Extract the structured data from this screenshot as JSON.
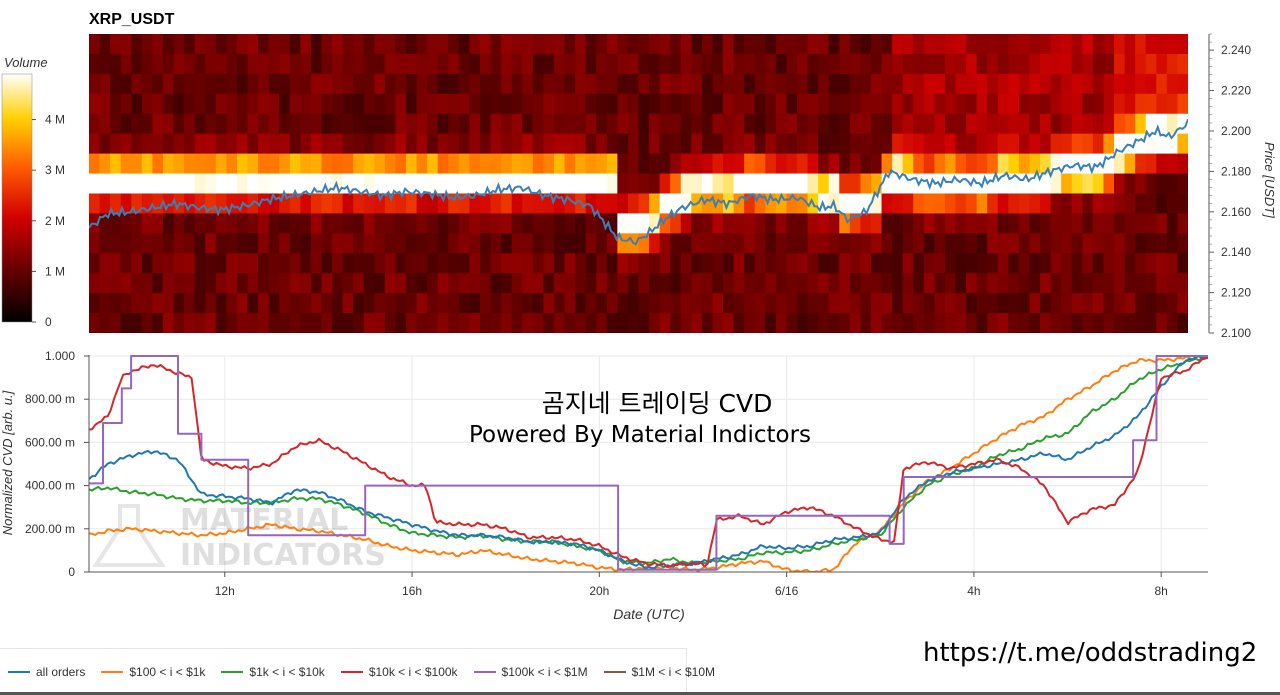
{
  "title": "XRP_USDT",
  "heatmap": {
    "colorbar_label": "Volume",
    "colorbar_ticks": [
      "0",
      "1 M",
      "2 M",
      "3 M",
      "4 M"
    ],
    "colorbar_values": [
      0,
      1000000,
      2000000,
      3000000,
      4000000
    ],
    "colorbar_max": 4900000,
    "price_axis_label": "Price [USDT]",
    "price_ticks": [
      "2.100",
      "2.120",
      "2.140",
      "2.160",
      "2.180",
      "2.200",
      "2.220",
      "2.240"
    ],
    "price_tick_values": [
      2.1,
      2.12,
      2.14,
      2.16,
      2.18,
      2.2,
      2.22,
      2.24
    ],
    "price_range": [
      2.1,
      2.248
    ]
  },
  "cvd": {
    "y_axis_label": "Normalized CVD [arb. u.]",
    "y_ticks": [
      "0",
      "200.00 m",
      "400.00 m",
      "600.00 m",
      "800.00 m",
      "1.000"
    ],
    "y_tick_values": [
      0,
      0.2,
      0.4,
      0.6,
      0.8,
      1.0
    ],
    "x_axis_label": "Date (UTC)",
    "x_ticks": [
      "12h",
      "16h",
      "20h",
      "6/16",
      "4h",
      "8h"
    ],
    "x_tick_values": [
      12,
      16,
      20,
      24,
      28,
      32
    ],
    "x_range": [
      9.1,
      33.0
    ],
    "overlay_line1": "곰지네 트레이딩 CVD",
    "overlay_line2": "Powered By Material Indictors",
    "watermark_line1": "MATERIAL",
    "watermark_line2": "INDICATORS"
  },
  "legend": [
    {
      "label": "all orders",
      "color": "#1f77b4"
    },
    {
      "label": "$100 < i < $1k",
      "color": "#ff7f0e"
    },
    {
      "label": "$1k < i < $10k",
      "color": "#2ca02c"
    },
    {
      "label": "$10k < i < $100k",
      "color": "#d62728"
    },
    {
      "label": "$100k < i < $1M",
      "color": "#9467bd"
    },
    {
      "label": "$1M < i < $10M",
      "color": "#8c564b"
    }
  ],
  "telegram": "https://t.me/oddstrading2",
  "chart_data": [
    {
      "type": "heatmap",
      "title": "XRP_USDT",
      "ylabel": "Price [USDT]",
      "ylim": [
        2.1,
        2.248
      ],
      "colorbar": "Volume",
      "price_series": {
        "x": [
          9.1,
          9.5,
          10.0,
          10.5,
          11.0,
          11.5,
          12.0,
          12.5,
          13.0,
          13.5,
          14.0,
          14.5,
          15.0,
          15.5,
          16.0,
          16.5,
          17.0,
          17.5,
          18.0,
          18.5,
          19.0,
          19.5,
          20.0,
          20.3,
          20.6,
          21.0,
          21.3,
          21.6,
          22.0,
          22.5,
          23.0,
          23.5,
          24.0,
          24.5,
          25.0,
          25.3,
          25.6,
          26.0,
          26.5,
          27.0,
          27.5,
          28.0,
          28.5,
          29.0,
          29.5,
          30.0,
          30.5,
          31.0,
          31.5,
          32.0,
          32.3,
          32.6,
          33.0
        ],
        "y": [
          2.152,
          2.159,
          2.16,
          2.162,
          2.164,
          2.162,
          2.161,
          2.163,
          2.166,
          2.168,
          2.17,
          2.172,
          2.17,
          2.168,
          2.17,
          2.169,
          2.167,
          2.168,
          2.171,
          2.172,
          2.168,
          2.166,
          2.163,
          2.155,
          2.147,
          2.145,
          2.15,
          2.156,
          2.162,
          2.166,
          2.164,
          2.168,
          2.166,
          2.167,
          2.162,
          2.163,
          2.156,
          2.16,
          2.18,
          2.176,
          2.174,
          2.176,
          2.174,
          2.178,
          2.176,
          2.18,
          2.183,
          2.182,
          2.19,
          2.196,
          2.2,
          2.197,
          2.204
        ]
      }
    },
    {
      "type": "line",
      "xlabel": "Date (UTC)",
      "ylabel": "Normalized CVD [arb. u.]",
      "ylim": [
        0,
        1.0
      ],
      "xlim": [
        9.1,
        33.0
      ],
      "series": [
        {
          "name": "all orders",
          "color": "#1f77b4",
          "x": [
            9.1,
            9.5,
            10.0,
            10.5,
            11.0,
            11.5,
            12.0,
            12.5,
            13.0,
            13.5,
            14.0,
            14.5,
            15.0,
            15.5,
            16.0,
            16.5,
            17.0,
            17.5,
            18.0,
            18.5,
            19.0,
            19.5,
            20.0,
            20.5,
            21.0,
            21.5,
            22.0,
            22.5,
            23.0,
            23.5,
            24.0,
            24.5,
            25.0,
            25.5,
            26.0,
            26.5,
            27.0,
            27.5,
            28.0,
            28.5,
            29.0,
            29.5,
            30.0,
            30.5,
            31.0,
            31.5,
            32.0,
            32.5,
            33.0
          ],
          "y": [
            0.43,
            0.5,
            0.54,
            0.56,
            0.52,
            0.36,
            0.35,
            0.34,
            0.32,
            0.38,
            0.37,
            0.33,
            0.28,
            0.25,
            0.22,
            0.19,
            0.17,
            0.17,
            0.16,
            0.14,
            0.14,
            0.13,
            0.1,
            0.05,
            0.02,
            0.03,
            0.04,
            0.06,
            0.08,
            0.12,
            0.11,
            0.12,
            0.15,
            0.16,
            0.18,
            0.34,
            0.42,
            0.46,
            0.48,
            0.5,
            0.52,
            0.55,
            0.52,
            0.58,
            0.63,
            0.72,
            0.86,
            0.98,
            1.0
          ]
        },
        {
          "name": "$100 < i < $1k",
          "color": "#ff7f0e",
          "x": [
            9.1,
            9.5,
            10.0,
            10.5,
            11.0,
            11.5,
            12.0,
            12.5,
            13.0,
            13.5,
            14.0,
            14.5,
            15.0,
            15.5,
            16.0,
            16.5,
            17.0,
            17.5,
            18.0,
            18.5,
            19.0,
            19.5,
            20.0,
            20.5,
            21.0,
            21.5,
            22.0,
            22.5,
            23.0,
            23.5,
            24.0,
            24.5,
            25.0,
            25.5,
            26.0,
            26.5,
            27.0,
            27.5,
            28.0,
            28.5,
            29.0,
            29.5,
            30.0,
            30.5,
            31.0,
            31.5,
            32.0,
            32.5,
            33.0
          ],
          "y": [
            0.17,
            0.19,
            0.2,
            0.19,
            0.18,
            0.17,
            0.18,
            0.2,
            0.22,
            0.2,
            0.19,
            0.17,
            0.15,
            0.12,
            0.1,
            0.09,
            0.08,
            0.1,
            0.08,
            0.06,
            0.05,
            0.04,
            0.02,
            0.01,
            0.02,
            0.02,
            0.01,
            0.02,
            0.04,
            0.05,
            0.01,
            0.0,
            0.01,
            0.14,
            0.19,
            0.32,
            0.42,
            0.48,
            0.55,
            0.62,
            0.68,
            0.72,
            0.8,
            0.86,
            0.93,
            0.98,
            0.98,
            0.99,
            1.0
          ]
        },
        {
          "name": "$1k < i < $10k",
          "color": "#2ca02c",
          "x": [
            9.1,
            9.5,
            10.0,
            10.5,
            11.0,
            11.5,
            12.0,
            12.5,
            13.0,
            13.5,
            14.0,
            14.5,
            15.0,
            15.5,
            16.0,
            16.5,
            17.0,
            17.5,
            18.0,
            18.5,
            19.0,
            19.5,
            20.0,
            20.5,
            21.0,
            21.5,
            22.0,
            22.5,
            23.0,
            23.5,
            24.0,
            24.5,
            25.0,
            25.5,
            26.0,
            26.5,
            27.0,
            27.5,
            28.0,
            28.5,
            29.0,
            29.5,
            30.0,
            30.5,
            31.0,
            31.5,
            32.0,
            32.5,
            33.0
          ],
          "y": [
            0.38,
            0.39,
            0.37,
            0.36,
            0.34,
            0.33,
            0.33,
            0.32,
            0.32,
            0.34,
            0.34,
            0.31,
            0.27,
            0.22,
            0.18,
            0.17,
            0.16,
            0.17,
            0.15,
            0.14,
            0.14,
            0.12,
            0.1,
            0.05,
            0.04,
            0.06,
            0.04,
            0.05,
            0.06,
            0.09,
            0.09,
            0.1,
            0.13,
            0.15,
            0.17,
            0.3,
            0.4,
            0.45,
            0.48,
            0.54,
            0.57,
            0.62,
            0.64,
            0.74,
            0.8,
            0.89,
            0.94,
            0.97,
            1.0
          ]
        },
        {
          "name": "$10k < i < $100k",
          "color": "#d62728",
          "x": [
            9.1,
            9.5,
            9.8,
            10.0,
            10.5,
            11.0,
            11.3,
            11.5,
            12.0,
            12.5,
            13.0,
            13.5,
            14.0,
            14.5,
            15.0,
            15.5,
            16.0,
            16.3,
            16.5,
            17.0,
            17.5,
            18.0,
            18.5,
            19.0,
            19.5,
            20.0,
            20.5,
            21.0,
            21.5,
            22.0,
            22.3,
            22.5,
            23.0,
            23.5,
            24.0,
            24.5,
            25.0,
            25.5,
            26.0,
            26.3,
            26.5,
            27.0,
            27.5,
            28.0,
            28.5,
            29.0,
            29.5,
            30.0,
            30.5,
            31.0,
            31.5,
            32.0,
            32.5,
            33.0
          ],
          "y": [
            0.66,
            0.72,
            0.9,
            0.93,
            0.96,
            0.92,
            0.9,
            0.52,
            0.49,
            0.48,
            0.5,
            0.58,
            0.61,
            0.56,
            0.5,
            0.44,
            0.4,
            0.4,
            0.23,
            0.22,
            0.22,
            0.2,
            0.16,
            0.16,
            0.15,
            0.12,
            0.07,
            0.04,
            0.03,
            0.04,
            0.03,
            0.24,
            0.26,
            0.22,
            0.28,
            0.3,
            0.26,
            0.2,
            0.15,
            0.14,
            0.48,
            0.51,
            0.48,
            0.5,
            0.52,
            0.48,
            0.4,
            0.23,
            0.29,
            0.31,
            0.46,
            0.9,
            0.93,
            1.0
          ]
        },
        {
          "name": "$100k < i < $1M",
          "color": "#9467bd",
          "step": true,
          "x": [
            9.1,
            9.4,
            9.8,
            10.0,
            10.2,
            10.8,
            11.0,
            11.5,
            12.0,
            12.5,
            13.0,
            14.0,
            15.0,
            16.0,
            17.0,
            18.0,
            19.0,
            20.0,
            20.4,
            21.0,
            22.0,
            22.5,
            23.0,
            24.0,
            25.0,
            26.0,
            26.2,
            26.5,
            27.0,
            28.0,
            29.0,
            30.0,
            31.0,
            31.4,
            31.9,
            32.5,
            33.0
          ],
          "y": [
            0.41,
            0.69,
            0.85,
            1.0,
            1.0,
            1.0,
            0.64,
            0.52,
            0.52,
            0.17,
            0.17,
            0.17,
            0.4,
            0.4,
            0.4,
            0.4,
            0.4,
            0.4,
            0.01,
            0.01,
            0.01,
            0.26,
            0.26,
            0.26,
            0.26,
            0.26,
            0.13,
            0.44,
            0.44,
            0.44,
            0.44,
            0.44,
            0.44,
            0.61,
            1.0,
            1.0,
            1.0
          ]
        },
        {
          "name": "$1M < i < $10M",
          "color": "#8c564b",
          "x": [],
          "y": []
        }
      ]
    }
  ]
}
